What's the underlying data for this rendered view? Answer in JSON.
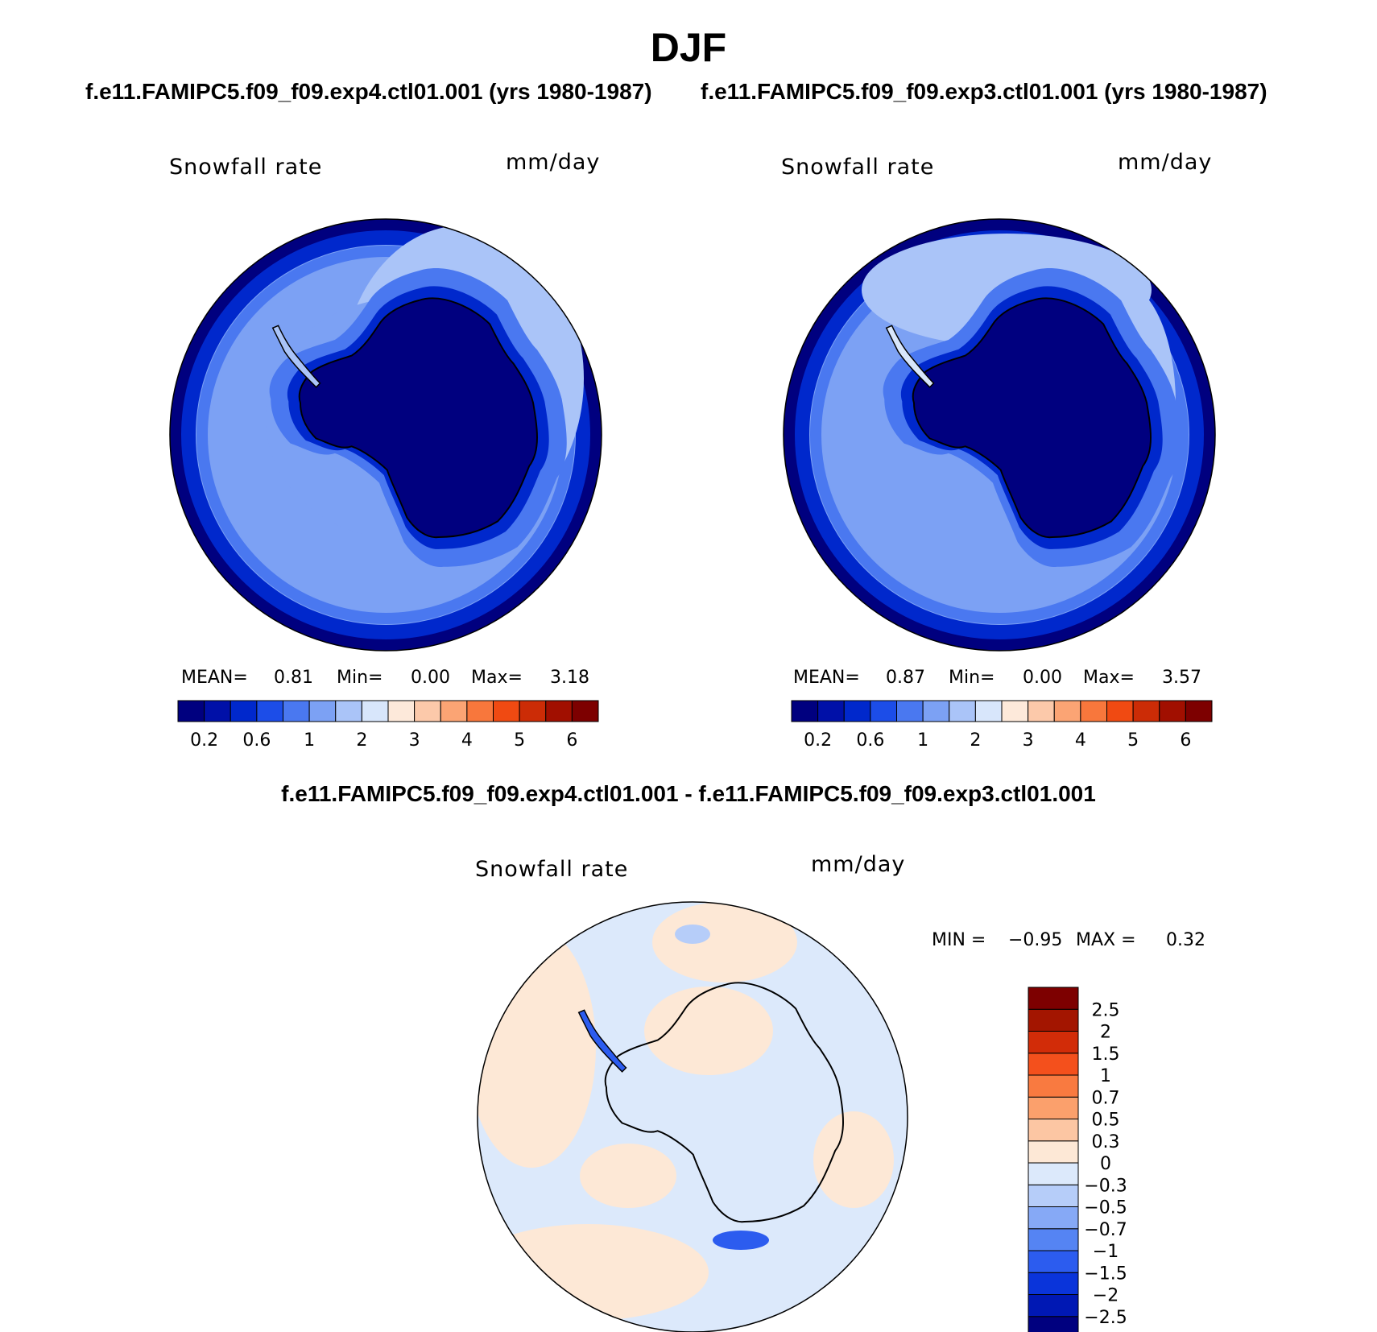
{
  "title": "DJF",
  "case1": "f.e11.FAMIPC5.f09_f09.exp4.ctl01.001 (yrs 1980-1987)",
  "case2": "f.e11.FAMIPC5.f09_f09.exp3.ctl01.001 (yrs 1980-1987)",
  "diff_title": "f.e11.FAMIPC5.f09_f09.exp4.ctl01.001 - f.e11.FAMIPC5.f09_f09.exp3.ctl01.001",
  "panel1": {
    "variable": "Snowfall rate",
    "units": "mm/day",
    "mean_label": "MEAN=",
    "mean": "0.81",
    "min_label": "Min=",
    "min": "0.00",
    "max_label": "Max=",
    "max": "3.18"
  },
  "panel2": {
    "variable": "Snowfall rate",
    "units": "mm/day",
    "mean_label": "MEAN=",
    "mean": "0.87",
    "min_label": "Min=",
    "min": "0.00",
    "max_label": "Max=",
    "max": "3.57"
  },
  "panel3": {
    "variable": "Snowfall rate",
    "units": "mm/day",
    "min_label": "MIN =",
    "min": "−0.95",
    "max_label": "MAX =",
    "max": "0.32"
  },
  "colorbar_abs": {
    "colors": [
      "#00007f",
      "#0010a8",
      "#0028cc",
      "#1c4de8",
      "#4a78f0",
      "#7ca1f4",
      "#aac4f8",
      "#d8e6fb",
      "#fde9da",
      "#fcc9aa",
      "#fba474",
      "#f8773c",
      "#f04a12",
      "#cc2c06",
      "#a10f00",
      "#7d0000"
    ],
    "tick_labels": [
      "0.2",
      "0.6",
      "1",
      "2",
      "3",
      "4",
      "5",
      "6"
    ]
  },
  "colorbar_diff": {
    "colors": [
      "#00007f",
      "#0018b4",
      "#0a34da",
      "#2c5cef",
      "#5584f3",
      "#86a9f6",
      "#b6cdf9",
      "#dce9fb",
      "#fde8d6",
      "#fcc6a3",
      "#fba06c",
      "#f97a40",
      "#f4501c",
      "#d22c08",
      "#a31500",
      "#7d0000"
    ],
    "tick_labels": [
      "−2.5",
      "−2",
      "−1.5",
      "−1",
      "−0.7",
      "−0.5",
      "−0.3",
      "0",
      "0.3",
      "0.5",
      "0.7",
      "1",
      "1.5",
      "2",
      "2.5"
    ]
  }
}
